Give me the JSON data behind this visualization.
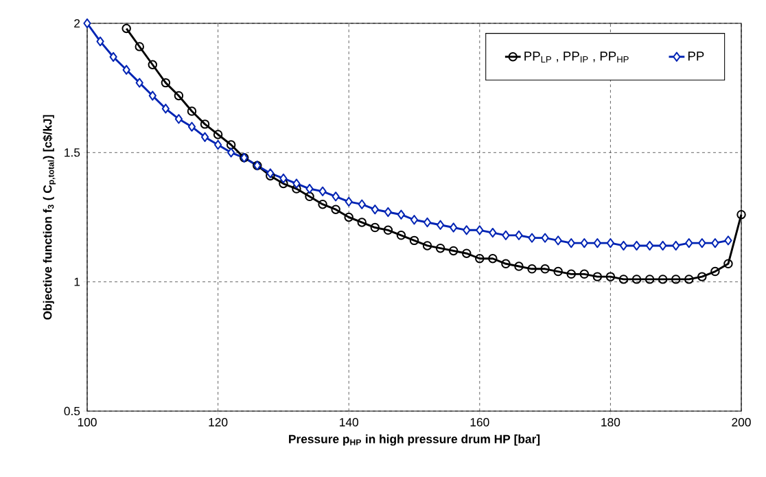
{
  "chart_data": {
    "type": "line",
    "xlabel": "Pressure p$_{HP}$ in high pressure drum HP [bar]",
    "ylabel": "Objective function f$_{3}$ ( C$_{p,total}$) [c$/kJ]",
    "xlim": [
      100,
      200
    ],
    "ylim": [
      0.5,
      2
    ],
    "xticks": [
      100,
      120,
      140,
      160,
      180,
      200
    ],
    "yticks": [
      0.5,
      1,
      1.5,
      2
    ],
    "grid": true,
    "legend": "top right",
    "line_style": "solid",
    "series": [
      {
        "name": "PP$_{LP}$ , PP$_{IP}$ , PP$_{HP}$",
        "color": "#000000",
        "marker": "circle",
        "x": [
          106,
          108,
          110,
          112,
          114,
          116,
          118,
          120,
          122,
          124,
          126,
          128,
          130,
          132,
          134,
          136,
          138,
          140,
          142,
          144,
          146,
          148,
          150,
          152,
          154,
          156,
          158,
          160,
          162,
          164,
          166,
          168,
          170,
          172,
          174,
          176,
          178,
          180,
          182,
          184,
          186,
          188,
          190,
          192,
          194,
          196,
          198,
          200
        ],
        "values": [
          1.98,
          1.91,
          1.84,
          1.77,
          1.72,
          1.66,
          1.61,
          1.57,
          1.53,
          1.48,
          1.45,
          1.41,
          1.38,
          1.36,
          1.33,
          1.3,
          1.28,
          1.25,
          1.23,
          1.21,
          1.2,
          1.18,
          1.16,
          1.14,
          1.13,
          1.12,
          1.11,
          1.09,
          1.09,
          1.07,
          1.06,
          1.05,
          1.05,
          1.04,
          1.03,
          1.03,
          1.02,
          1.02,
          1.01,
          1.01,
          1.01,
          1.01,
          1.01,
          1.01,
          1.02,
          1.04,
          1.07,
          1.26
        ]
      },
      {
        "name": "PP",
        "color": "#0024b4",
        "marker": "diamond",
        "x": [
          100,
          102,
          104,
          106,
          108,
          110,
          112,
          114,
          116,
          118,
          120,
          122,
          124,
          126,
          128,
          130,
          132,
          134,
          136,
          138,
          140,
          142,
          144,
          146,
          148,
          150,
          152,
          154,
          156,
          158,
          160,
          162,
          164,
          166,
          168,
          170,
          172,
          174,
          176,
          178,
          180,
          182,
          184,
          186,
          188,
          190,
          192,
          194,
          196,
          198
        ],
        "values": [
          2.0,
          1.93,
          1.87,
          1.82,
          1.77,
          1.72,
          1.67,
          1.63,
          1.6,
          1.56,
          1.53,
          1.5,
          1.48,
          1.45,
          1.42,
          1.4,
          1.38,
          1.36,
          1.35,
          1.33,
          1.31,
          1.3,
          1.28,
          1.27,
          1.26,
          1.24,
          1.23,
          1.22,
          1.21,
          1.2,
          1.2,
          1.19,
          1.18,
          1.18,
          1.17,
          1.17,
          1.16,
          1.15,
          1.15,
          1.15,
          1.15,
          1.14,
          1.14,
          1.14,
          1.14,
          1.14,
          1.15,
          1.15,
          1.15,
          1.16
        ]
      }
    ]
  }
}
